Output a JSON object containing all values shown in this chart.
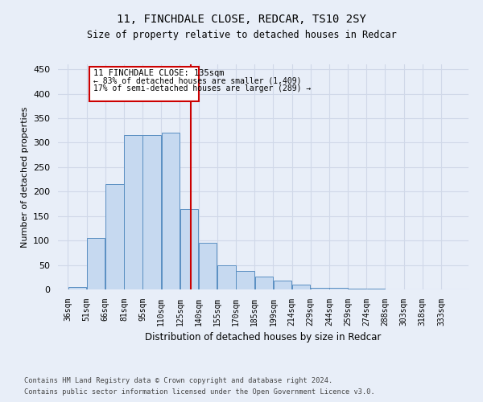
{
  "title1": "11, FINCHDALE CLOSE, REDCAR, TS10 2SY",
  "title2": "Size of property relative to detached houses in Redcar",
  "xlabel": "Distribution of detached houses by size in Redcar",
  "ylabel": "Number of detached properties",
  "footer1": "Contains HM Land Registry data © Crown copyright and database right 2024.",
  "footer2": "Contains public sector information licensed under the Open Government Licence v3.0.",
  "annotation_title": "11 FINCHDALE CLOSE: 135sqm",
  "annotation_line1": "← 83% of detached houses are smaller (1,409)",
  "annotation_line2": "17% of semi-detached houses are larger (289) →",
  "categories": [
    "36sqm",
    "51sqm",
    "66sqm",
    "81sqm",
    "95sqm",
    "110sqm",
    "125sqm",
    "140sqm",
    "155sqm",
    "170sqm",
    "185sqm",
    "199sqm",
    "214sqm",
    "229sqm",
    "244sqm",
    "259sqm",
    "274sqm",
    "288sqm",
    "303sqm",
    "318sqm",
    "333sqm"
  ],
  "values": [
    5,
    105,
    215,
    315,
    315,
    320,
    165,
    95,
    50,
    37,
    27,
    18,
    10,
    4,
    4,
    1,
    1,
    0,
    0,
    0,
    0
  ],
  "bar_color": "#c6d9f0",
  "bar_edge_color": "#5a8fc2",
  "vline_color": "#cc0000",
  "vline_x": 135,
  "ylim": [
    0,
    460
  ],
  "yticks": [
    0,
    50,
    100,
    150,
    200,
    250,
    300,
    350,
    400,
    450
  ],
  "grid_color": "#d0d8e8",
  "box_color": "#cc0000",
  "bg_color": "#e8eef8"
}
